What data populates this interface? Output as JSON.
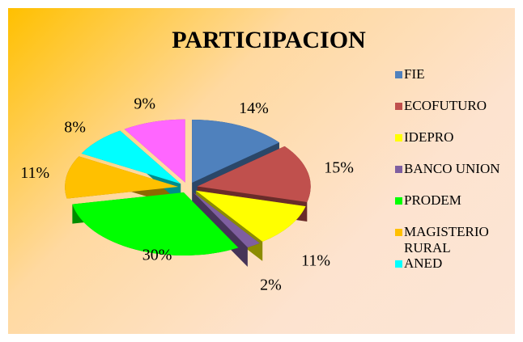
{
  "chart_data": {
    "type": "pie",
    "title": "PARTICIPACION",
    "categories": [
      "FIE",
      "ECOFUTURO",
      "IDEPRO",
      "BANCO UNION",
      "PRODEM",
      "MAGISTERIO RURAL",
      "ANED",
      null
    ],
    "values": [
      14,
      15,
      11,
      2,
      30,
      11,
      8,
      9
    ],
    "value_labels": [
      "14%",
      "15%",
      "11%",
      "2%",
      "30%",
      "11%",
      "8%",
      "9%"
    ],
    "colors": [
      "#4f81bd",
      "#c0504d",
      "#ffff00",
      "#7f5fa0",
      "#00ff00",
      "#ffc000",
      "#00ffff",
      "#ff66ff"
    ],
    "legend": "right"
  }
}
